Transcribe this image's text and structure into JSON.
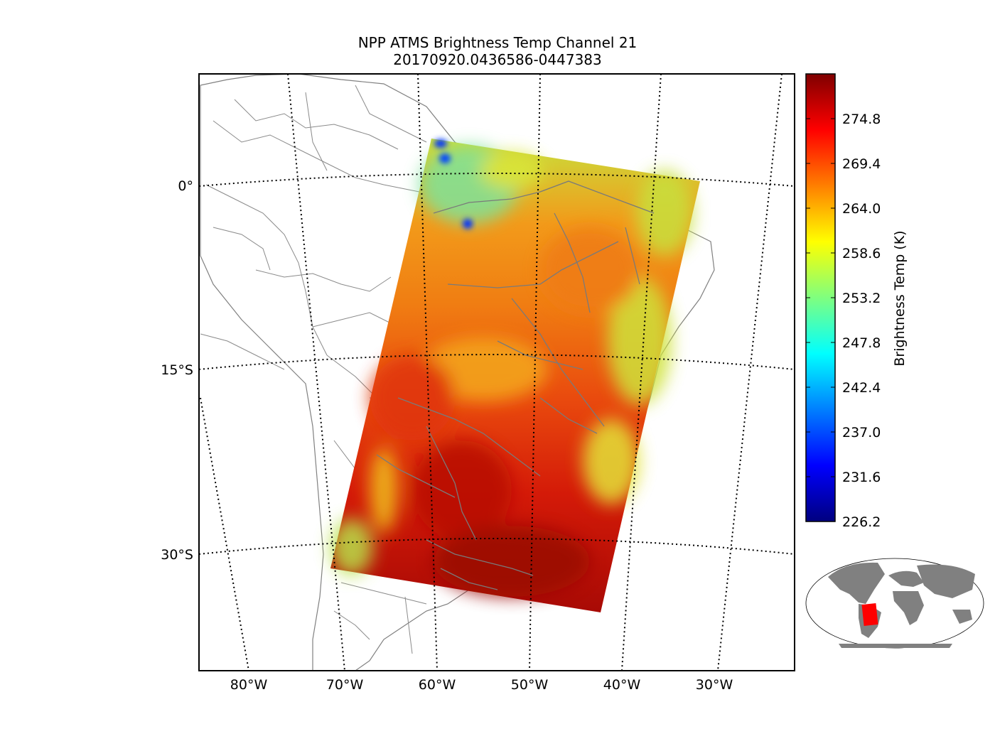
{
  "title": {
    "line1": "NPP ATMS Brightness Temp Channel 21",
    "line2": "20170920.0436586-0447383"
  },
  "map": {
    "lat_labels": [
      "0°",
      "15°S",
      "30°S"
    ],
    "lon_labels": [
      "80°W",
      "70°W",
      "60°W",
      "50°W",
      "40°W",
      "30°W"
    ],
    "graticule": "dotted",
    "coastline_color": "#808080",
    "swath_colormap": "jet"
  },
  "colorbar": {
    "label": "Brightness Temp (K)",
    "ticks": [
      "274.8",
      "269.4",
      "264.0",
      "258.6",
      "253.2",
      "247.8",
      "242.4",
      "237.0",
      "231.6",
      "226.2"
    ],
    "min": 226.2,
    "max": 280.2,
    "colors": [
      "#00007f",
      "#0000ff",
      "#007fff",
      "#00ffff",
      "#7fff7f",
      "#ffff00",
      "#ff7f00",
      "#ff0000",
      "#7f0000"
    ]
  },
  "inset": {
    "land_color": "#808080",
    "highlight_color": "#ff0000"
  }
}
